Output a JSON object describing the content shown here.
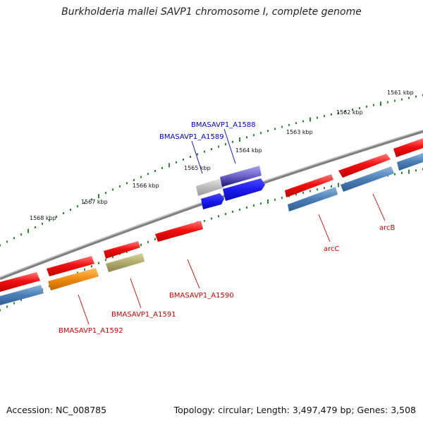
{
  "title": "Burkholderia mallei SAVP1 chromosome I, complete genome",
  "footer": {
    "accession": "Accession: NC_008785",
    "topology": "Topology: circular; Length: 3,497,479 bp; Genes: 3,508"
  },
  "kbp_labels": [
    "1561 kbp",
    "1562 kbp",
    "1563 kbp",
    "1564 kbp",
    "1565 kbp",
    "1566 kbp",
    "1567 kbp",
    "1568 kbp"
  ],
  "gene_labels": {
    "a1588": "BMASAVP1_A1588",
    "a1589": "BMASAVP1_A1589",
    "a1590": "BMASAVP1_A1590",
    "a1591": "BMASAVP1_A1591",
    "a1592": "BMASAVP1_A1592",
    "arcC": "arcC",
    "arcB": "arcB"
  },
  "colors": {
    "backbone": "#7f7f7f",
    "tick": "#2a8a2a",
    "forward_gene": "#e11010",
    "reverse_gene": "#4a7fb5",
    "blue_gene": "#1a1aee",
    "purple_gene": "#6a62c8",
    "gray_gene": "#b8b8b8",
    "orange_gene": "#f08a10",
    "olive_gene": "#b0aa6a",
    "red_label": "#cc0000",
    "blue_label": "#0000cc"
  }
}
